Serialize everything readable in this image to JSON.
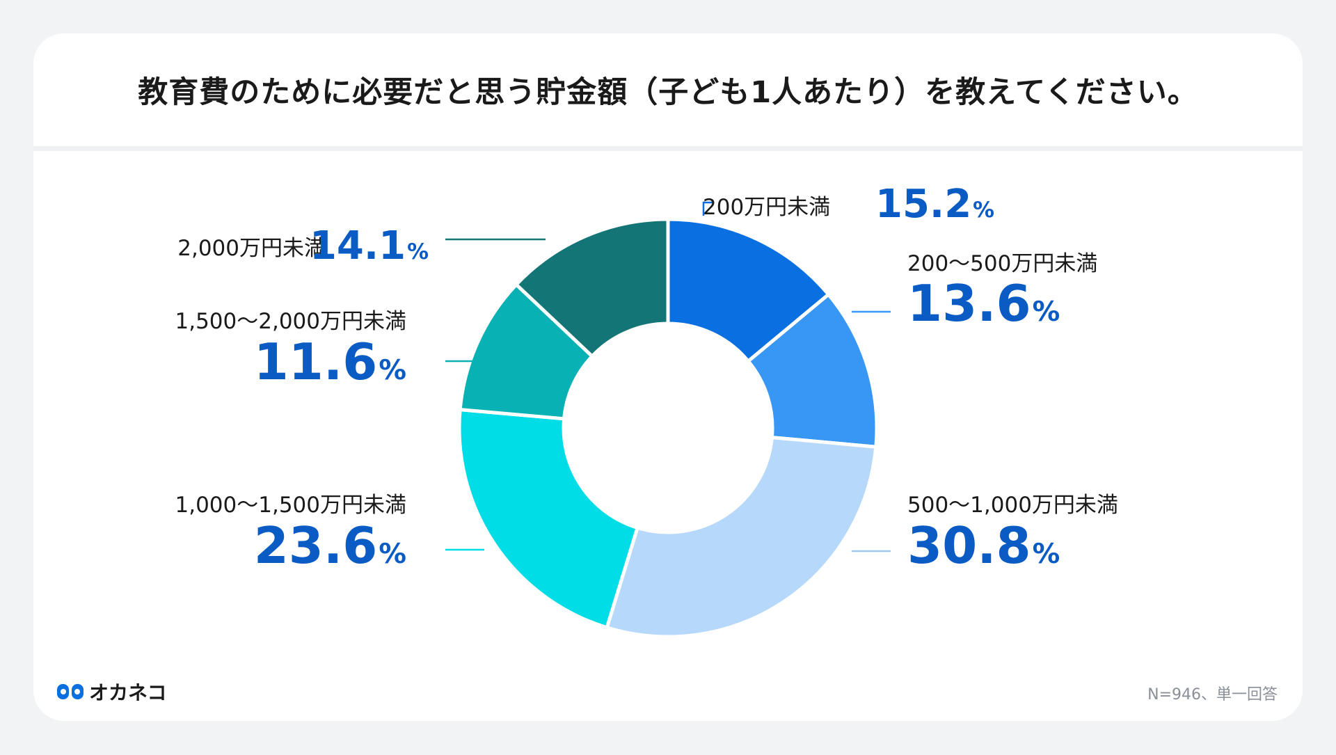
{
  "title": "教育費のために必要だと思う貯金額（子ども1人あたり）を教えてください。",
  "brand": {
    "name": "オカネコ",
    "logo_icon": "okaneko-logo-icon"
  },
  "note": "N=946、単一回答",
  "chart_data": {
    "type": "pie",
    "style": "donut",
    "unit": "%",
    "slices": [
      {
        "label": "200万円未満",
        "value": 15.2,
        "color": "#0a6fe0"
      },
      {
        "label": "200〜500万円未満",
        "value": 13.6,
        "color": "#3897f5"
      },
      {
        "label": "500〜1,000万円未満",
        "value": 30.8,
        "color": "#b6d8fb"
      },
      {
        "label": "1,000〜1,500万円未満",
        "value": 23.6,
        "color": "#00dde6"
      },
      {
        "label": "1,500〜2,000万円未満",
        "value": 11.6,
        "color": "#08b1b4"
      },
      {
        "label": "2,000万円未満",
        "value": 14.1,
        "color": "#137575"
      }
    ]
  }
}
